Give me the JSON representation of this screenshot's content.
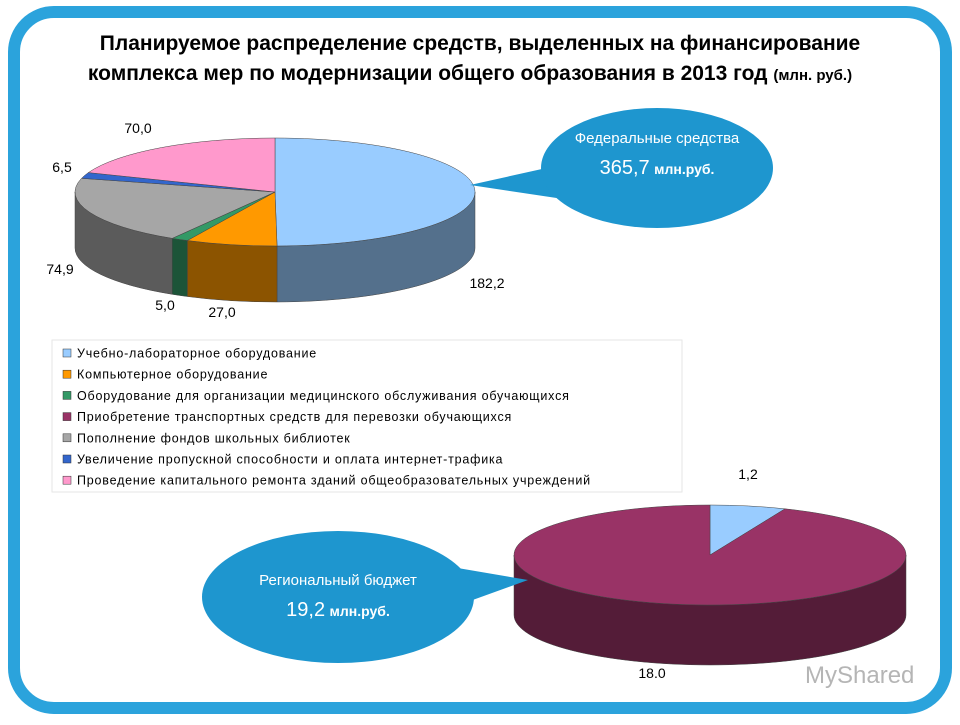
{
  "title": "Планируемое распределение средств, выделенных на финансирование",
  "title_line2": "комплекса мер по модернизации общего образования в 2013 год",
  "title_unit": "(млн. руб.)",
  "callouts": [
    {
      "label": "Федеральные средства",
      "amount": "365,7",
      "unit": "млн.руб."
    },
    {
      "label": "Региональный бюджет",
      "amount": "19,2",
      "unit": "млн.руб."
    }
  ],
  "watermark": "MyShared",
  "chart_data": [
    {
      "type": "pie",
      "categories": [
        "Учебно-лабораторное оборудование",
        "Компьютерное оборудование",
        "Оборудование для организации медицинского обслуживания обучающихся",
        "Приобретение транспортных средств для перевозки обучающихся",
        "Пополнение фондов школьных библиотек",
        "Увеличение пропускной способности и оплата интернет-трафика",
        "Проведение капитального ремонта зданий общеобразовательных учреждений"
      ],
      "values": [
        182.2,
        27.0,
        5.0,
        0,
        74.9,
        6.5,
        70.0
      ],
      "value_labels": [
        "182,2",
        "27,0",
        "5,0",
        null,
        "74,9",
        "6,5",
        "70,0"
      ],
      "colors": [
        "#99ccff",
        "#ff9900",
        "#339966",
        "#993366",
        "#a6a6a6",
        "#3366cc",
        "#ff99cc"
      ]
    },
    {
      "type": "pie",
      "values": [
        1.2,
        18.0
      ],
      "value_labels": [
        "1,2",
        "18.0"
      ],
      "colors": [
        "#99ccff",
        "#993366"
      ]
    }
  ]
}
